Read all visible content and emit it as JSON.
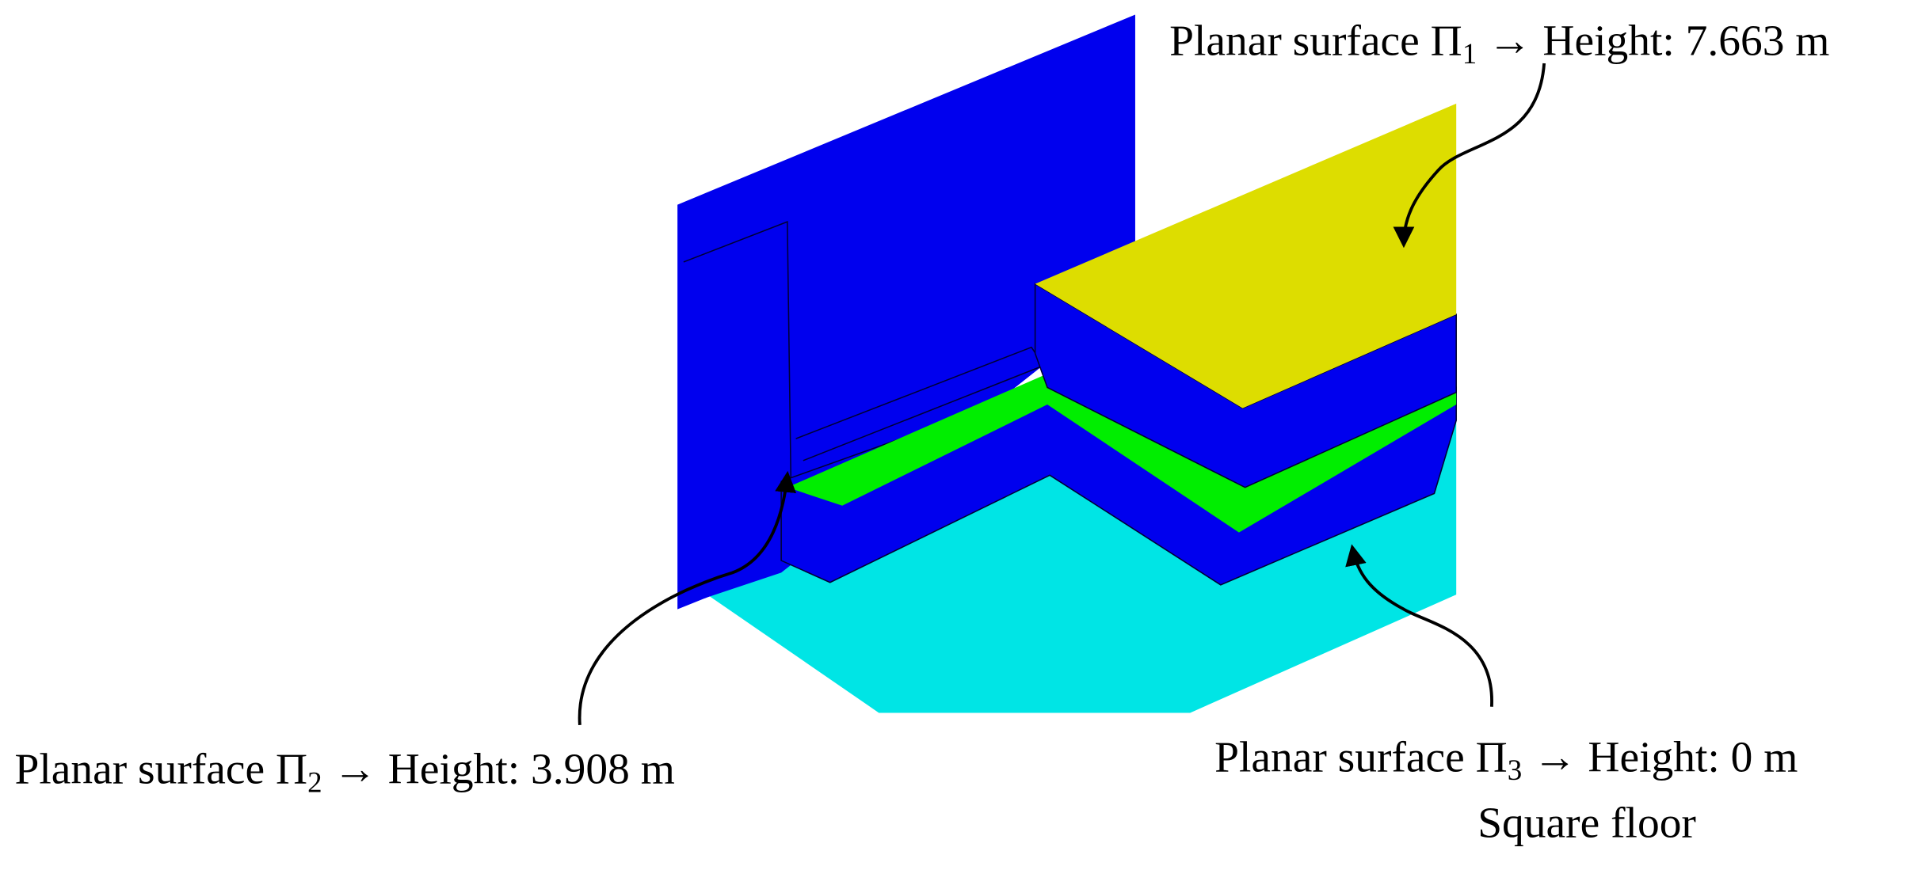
{
  "surfaces": [
    {
      "label": "Planar surface Π",
      "index": "1",
      "height": " → Height: 7.663 m"
    },
    {
      "label": "Planar surface Π",
      "index": "2",
      "height": " → Height: 3.908 m"
    },
    {
      "label": "Planar surface Π",
      "index": "3",
      "height": " → Height: 0 m",
      "note": "Square floor"
    }
  ]
}
